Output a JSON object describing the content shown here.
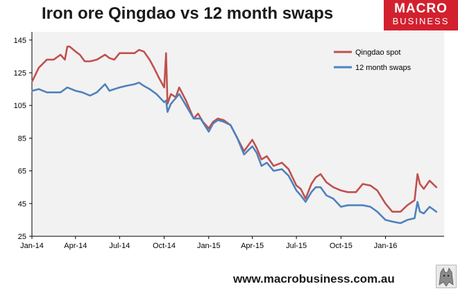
{
  "title": "Iron ore Qingdao vs 12 month swaps",
  "logo": {
    "line1": "MACRO",
    "line2": "BUSINESS",
    "color": "#d2202f"
  },
  "footer_url": "www.macrobusiness.com.au",
  "colors": {
    "qingdao": "#c0504d",
    "swaps": "#4f81bd",
    "plot_bg": "#f2f2f2"
  },
  "chart_data": {
    "type": "line",
    "title": "Iron ore Qingdao vs 12 month swaps",
    "ylim": [
      25,
      150
    ],
    "yticks": [
      25,
      45,
      65,
      85,
      105,
      125,
      145
    ],
    "xlim": [
      "2014-01-01",
      "2016-05-01"
    ],
    "xticks": [
      {
        "date": "2014-01-01",
        "label": "Jan-14"
      },
      {
        "date": "2014-04-01",
        "label": "Apr-14"
      },
      {
        "date": "2014-07-01",
        "label": "Jul-14"
      },
      {
        "date": "2014-10-01",
        "label": "Oct-14"
      },
      {
        "date": "2015-01-01",
        "label": "Jan-15"
      },
      {
        "date": "2015-04-01",
        "label": "Apr-15"
      },
      {
        "date": "2015-07-01",
        "label": "Jul-15"
      },
      {
        "date": "2015-10-01",
        "label": "Oct-15"
      },
      {
        "date": "2016-01-01",
        "label": "Jan-16"
      }
    ],
    "grid": false,
    "legend_position": "top-right",
    "series": [
      {
        "name": "Qingdao spot",
        "color": "#c0504d",
        "points": [
          [
            "2014-01-02",
            120
          ],
          [
            "2014-01-15",
            128
          ],
          [
            "2014-02-01",
            133
          ],
          [
            "2014-02-15",
            133
          ],
          [
            "2014-03-01",
            136
          ],
          [
            "2014-03-10",
            133
          ],
          [
            "2014-03-15",
            141
          ],
          [
            "2014-03-20",
            141
          ],
          [
            "2014-04-01",
            138
          ],
          [
            "2014-04-10",
            136
          ],
          [
            "2014-04-20",
            132
          ],
          [
            "2014-05-01",
            132
          ],
          [
            "2014-05-15",
            133
          ],
          [
            "2014-06-01",
            136
          ],
          [
            "2014-06-10",
            134
          ],
          [
            "2014-06-20",
            133
          ],
          [
            "2014-07-01",
            137
          ],
          [
            "2014-07-15",
            137
          ],
          [
            "2014-08-01",
            137
          ],
          [
            "2014-08-10",
            139
          ],
          [
            "2014-08-20",
            138
          ],
          [
            "2014-09-01",
            133
          ],
          [
            "2014-09-10",
            128
          ],
          [
            "2014-09-20",
            122
          ],
          [
            "2014-10-01",
            116
          ],
          [
            "2014-10-05",
            137
          ],
          [
            "2014-10-08",
            106
          ],
          [
            "2014-10-15",
            112
          ],
          [
            "2014-10-25",
            110
          ],
          [
            "2014-11-01",
            116
          ],
          [
            "2014-11-15",
            108
          ],
          [
            "2014-12-01",
            97
          ],
          [
            "2014-12-10",
            100
          ],
          [
            "2014-12-20",
            95
          ],
          [
            "2015-01-01",
            91
          ],
          [
            "2015-01-10",
            95
          ],
          [
            "2015-01-20",
            97
          ],
          [
            "2015-02-01",
            96
          ],
          [
            "2015-02-15",
            93
          ],
          [
            "2015-03-01",
            85
          ],
          [
            "2015-03-15",
            77
          ],
          [
            "2015-04-01",
            84
          ],
          [
            "2015-04-10",
            79
          ],
          [
            "2015-04-20",
            72
          ],
          [
            "2015-05-01",
            74
          ],
          [
            "2015-05-15",
            68
          ],
          [
            "2015-06-01",
            70
          ],
          [
            "2015-06-15",
            66
          ],
          [
            "2015-07-01",
            56
          ],
          [
            "2015-07-10",
            54
          ],
          [
            "2015-07-20",
            48
          ],
          [
            "2015-08-01",
            57
          ],
          [
            "2015-08-10",
            61
          ],
          [
            "2015-08-20",
            63
          ],
          [
            "2015-09-01",
            58
          ],
          [
            "2015-09-15",
            55
          ],
          [
            "2015-10-01",
            53
          ],
          [
            "2015-10-15",
            52
          ],
          [
            "2015-11-01",
            52
          ],
          [
            "2015-11-15",
            57
          ],
          [
            "2015-12-01",
            56
          ],
          [
            "2015-12-15",
            53
          ],
          [
            "2016-01-01",
            45
          ],
          [
            "2016-01-15",
            40
          ],
          [
            "2016-02-01",
            40
          ],
          [
            "2016-02-15",
            44
          ],
          [
            "2016-03-01",
            47
          ],
          [
            "2016-03-07",
            63
          ],
          [
            "2016-03-12",
            57
          ],
          [
            "2016-03-20",
            54
          ],
          [
            "2016-04-01",
            59
          ],
          [
            "2016-04-15",
            55
          ]
        ]
      },
      {
        "name": "12 month swaps",
        "color": "#4f81bd",
        "points": [
          [
            "2014-01-02",
            114
          ],
          [
            "2014-01-15",
            115
          ],
          [
            "2014-02-01",
            113
          ],
          [
            "2014-02-15",
            113
          ],
          [
            "2014-03-01",
            113
          ],
          [
            "2014-03-15",
            116
          ],
          [
            "2014-04-01",
            114
          ],
          [
            "2014-04-15",
            113
          ],
          [
            "2014-05-01",
            111
          ],
          [
            "2014-05-15",
            113
          ],
          [
            "2014-06-01",
            118
          ],
          [
            "2014-06-10",
            114
          ],
          [
            "2014-06-20",
            115
          ],
          [
            "2014-07-01",
            116
          ],
          [
            "2014-07-15",
            117
          ],
          [
            "2014-08-01",
            118
          ],
          [
            "2014-08-10",
            119
          ],
          [
            "2014-08-20",
            117
          ],
          [
            "2014-09-01",
            115
          ],
          [
            "2014-09-15",
            112
          ],
          [
            "2014-10-01",
            107
          ],
          [
            "2014-10-05",
            108
          ],
          [
            "2014-10-08",
            101
          ],
          [
            "2014-10-15",
            106
          ],
          [
            "2014-11-01",
            112
          ],
          [
            "2014-11-15",
            105
          ],
          [
            "2014-12-01",
            97
          ],
          [
            "2014-12-15",
            97
          ],
          [
            "2015-01-01",
            89
          ],
          [
            "2015-01-10",
            94
          ],
          [
            "2015-01-20",
            96
          ],
          [
            "2015-02-01",
            95
          ],
          [
            "2015-02-15",
            93
          ],
          [
            "2015-03-01",
            85
          ],
          [
            "2015-03-15",
            75
          ],
          [
            "2015-04-01",
            80
          ],
          [
            "2015-04-10",
            76
          ],
          [
            "2015-04-20",
            68
          ],
          [
            "2015-05-01",
            70
          ],
          [
            "2015-05-15",
            65
          ],
          [
            "2015-06-01",
            66
          ],
          [
            "2015-06-15",
            62
          ],
          [
            "2015-07-01",
            53
          ],
          [
            "2015-07-10",
            50
          ],
          [
            "2015-07-20",
            46
          ],
          [
            "2015-08-01",
            52
          ],
          [
            "2015-08-10",
            55
          ],
          [
            "2015-08-20",
            55
          ],
          [
            "2015-09-01",
            50
          ],
          [
            "2015-09-15",
            48
          ],
          [
            "2015-10-01",
            43
          ],
          [
            "2015-10-15",
            44
          ],
          [
            "2015-11-01",
            44
          ],
          [
            "2015-11-15",
            44
          ],
          [
            "2015-12-01",
            43
          ],
          [
            "2015-12-15",
            40
          ],
          [
            "2016-01-01",
            35
          ],
          [
            "2016-01-15",
            34
          ],
          [
            "2016-02-01",
            33
          ],
          [
            "2016-02-15",
            35
          ],
          [
            "2016-03-01",
            36
          ],
          [
            "2016-03-07",
            46
          ],
          [
            "2016-03-12",
            40
          ],
          [
            "2016-03-20",
            39
          ],
          [
            "2016-04-01",
            43
          ],
          [
            "2016-04-15",
            40
          ]
        ]
      }
    ]
  }
}
